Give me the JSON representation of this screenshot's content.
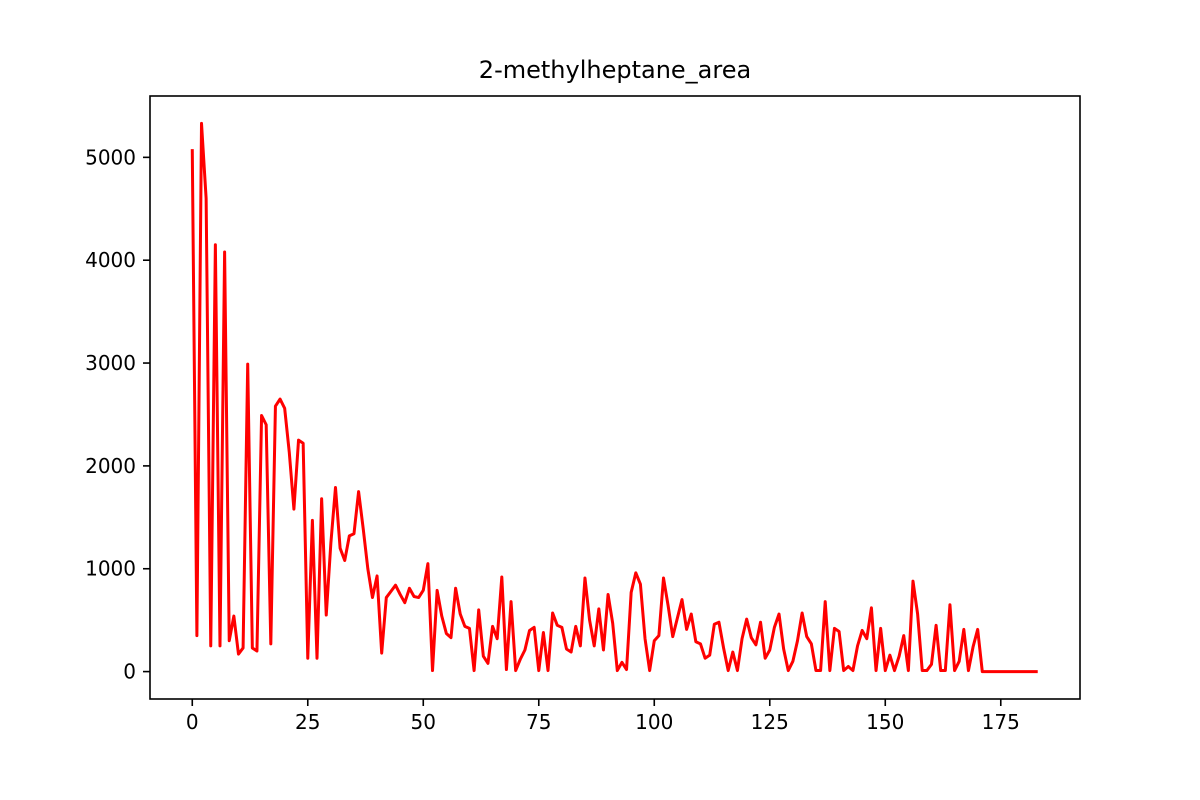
{
  "chart_data": {
    "type": "line",
    "title": "2-methylheptane_area",
    "xlabel": "",
    "ylabel": "",
    "xlim": [
      -9.15,
      192.15
    ],
    "ylim": [
      -266.5,
      5596.5
    ],
    "xticks": [
      0,
      25,
      50,
      75,
      100,
      125,
      150,
      175
    ],
    "xtick_labels": [
      "0",
      "25",
      "50",
      "75",
      "100",
      "125",
      "150",
      "175"
    ],
    "yticks": [
      0,
      1000,
      2000,
      3000,
      4000,
      5000
    ],
    "ytick_labels": [
      "0",
      "1000",
      "2000",
      "3000",
      "4000",
      "5000"
    ],
    "grid": false,
    "line_color": "#ff0000",
    "series": [
      {
        "x": [
          0,
          1,
          2,
          3,
          4,
          5,
          6,
          7,
          8,
          9,
          10,
          11,
          12,
          13,
          14,
          15,
          16,
          17,
          18,
          19,
          20,
          21,
          22,
          23,
          24,
          25,
          26,
          27,
          28,
          29,
          30,
          31,
          32,
          33,
          34,
          35,
          36,
          37,
          38,
          39,
          40,
          41,
          42,
          43,
          44,
          45,
          46,
          47,
          48,
          49,
          50,
          51,
          52,
          53,
          54,
          55,
          56,
          57,
          58,
          59,
          60,
          61,
          62,
          63,
          64,
          65,
          66,
          67,
          68,
          69,
          70,
          71,
          72,
          73,
          74,
          75,
          76,
          77,
          78,
          79,
          80,
          81,
          82,
          83,
          84,
          85,
          86,
          87,
          88,
          89,
          90,
          91,
          92,
          93,
          94,
          95,
          96,
          97,
          98,
          99,
          100,
          101,
          102,
          103,
          104,
          105,
          106,
          107,
          108,
          109,
          110,
          111,
          112,
          113,
          114,
          115,
          116,
          117,
          118,
          119,
          120,
          121,
          122,
          123,
          124,
          125,
          126,
          127,
          128,
          129,
          130,
          131,
          132,
          133,
          134,
          135,
          136,
          137,
          138,
          139,
          140,
          141,
          142,
          143,
          144,
          145,
          146,
          147,
          148,
          149,
          150,
          151,
          152,
          153,
          154,
          155,
          156,
          157,
          158,
          159,
          160,
          161,
          162,
          163,
          164,
          165,
          166,
          167,
          168,
          169,
          170,
          171,
          172,
          173,
          174,
          175,
          176,
          177,
          178,
          179,
          180,
          181,
          182,
          183
        ],
        "values": [
          5080,
          350,
          5330,
          4600,
          250,
          4150,
          250,
          4080,
          300,
          540,
          170,
          230,
          2990,
          230,
          200,
          2490,
          2400,
          270,
          2580,
          2650,
          2560,
          2130,
          1580,
          2250,
          2220,
          130,
          1470,
          130,
          1680,
          550,
          1250,
          1790,
          1200,
          1080,
          1320,
          1340,
          1750,
          1390,
          1000,
          720,
          930,
          180,
          720,
          780,
          840,
          750,
          670,
          810,
          730,
          720,
          790,
          1050,
          10,
          790,
          540,
          370,
          330,
          810,
          560,
          440,
          420,
          10,
          600,
          150,
          80,
          440,
          320,
          920,
          20,
          680,
          10,
          120,
          210,
          400,
          430,
          10,
          380,
          10,
          570,
          450,
          430,
          220,
          190,
          440,
          250,
          910,
          500,
          250,
          610,
          210,
          750,
          470,
          10,
          90,
          20,
          770,
          960,
          850,
          320,
          10,
          300,
          350,
          910,
          640,
          340,
          520,
          700,
          410,
          560,
          290,
          270,
          130,
          160,
          460,
          480,
          230,
          10,
          190,
          10,
          320,
          510,
          330,
          260,
          480,
          130,
          210,
          430,
          560,
          220,
          10,
          100,
          300,
          570,
          340,
          270,
          10,
          10,
          680,
          10,
          420,
          390,
          10,
          50,
          10,
          250,
          400,
          320,
          620,
          10,
          420,
          10,
          160,
          10,
          150,
          350,
          10,
          880,
          560,
          10,
          10,
          70,
          450,
          10,
          10,
          650,
          10,
          100,
          410,
          10,
          240,
          410,
          0,
          0,
          0,
          0,
          0,
          0,
          0,
          0,
          0,
          0,
          0,
          0,
          0
        ]
      }
    ]
  }
}
